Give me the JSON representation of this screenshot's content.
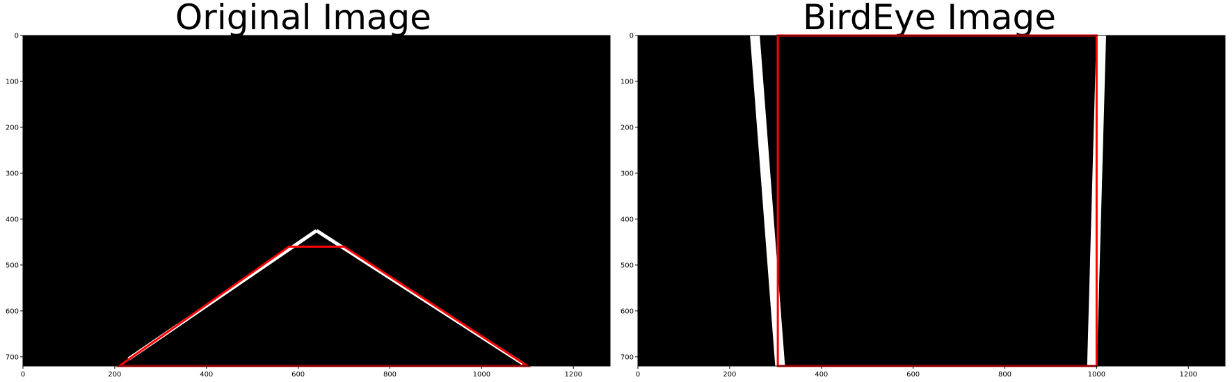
{
  "chart_data": [
    {
      "type": "image",
      "title": "Original Image",
      "xlim": [
        0,
        1280
      ],
      "ylim": [
        720,
        0
      ],
      "xticks": [
        0,
        200,
        400,
        600,
        800,
        1000,
        1200
      ],
      "yticks": [
        0,
        100,
        200,
        300,
        400,
        500,
        600,
        700
      ],
      "background": "#000000",
      "overlay_color": "#ff0000",
      "overlay_polygon": [
        [
          210,
          720
        ],
        [
          580,
          460
        ],
        [
          700,
          460
        ],
        [
          1100,
          720
        ]
      ],
      "lane_lines": [
        {
          "x": [
            230,
            640
          ],
          "y": [
            705,
            425
          ]
        },
        {
          "x": [
            640,
            1090
          ],
          "y": [
            425,
            715
          ]
        }
      ]
    },
    {
      "type": "image",
      "title": "BirdEye Image",
      "xlim": [
        0,
        1280
      ],
      "ylim": [
        720,
        0
      ],
      "xticks": [
        0,
        200,
        400,
        600,
        800,
        1000,
        1200
      ],
      "yticks": [
        0,
        100,
        200,
        300,
        400,
        500,
        600,
        700
      ],
      "background": "#000000",
      "overlay_color": "#ff0000",
      "overlay_polygon": [
        [
          305,
          0
        ],
        [
          305,
          720
        ],
        [
          1000,
          720
        ],
        [
          1000,
          0
        ]
      ],
      "lane_lines": [
        {
          "x": [
            255,
            310
          ],
          "y": [
            0,
            720
          ]
        },
        {
          "x": [
            1010,
            990
          ],
          "y": [
            0,
            720
          ]
        }
      ]
    }
  ]
}
